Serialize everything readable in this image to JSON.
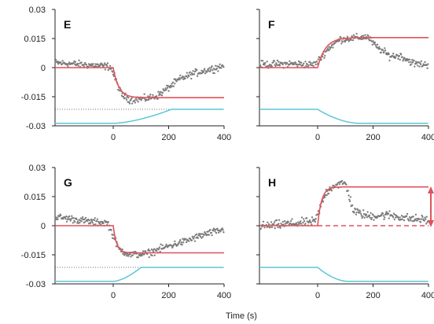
{
  "colors": {
    "fit": "#e0525a",
    "stimulus": "#5cc6d8",
    "points": "#7a7a7a",
    "axis": "#222222",
    "dotted": "#444444"
  },
  "figure": {
    "xlabel": "Time (s)"
  },
  "chart_data": [
    {
      "type": "scatter",
      "panel": "E",
      "xlim": [
        -210,
        400
      ],
      "ylim": [
        -0.03,
        0.03
      ],
      "x_ticks": [
        0,
        200,
        400
      ],
      "y_ticks": [
        0.03,
        0.015,
        0,
        -0.015,
        -0.03
      ],
      "y_tick_labels": [
        "0.03",
        "0.015",
        "0",
        "-0.015",
        "-0.03"
      ],
      "show_y_ticks": true,
      "fit": {
        "baseline": 0,
        "plateau": -0.0155,
        "onset": 0,
        "tau": 20
      },
      "stimulus": {
        "low": -0.0287,
        "high": -0.0215,
        "start": 0,
        "end": 210,
        "shape": "rise"
      },
      "dotted_level": -0.0215,
      "data_points": {
        "segments": [
          [
            -210,
            0.0025
          ],
          [
            -100,
            0.0015
          ],
          [
            -10,
            0.0005
          ],
          [
            30,
            -0.014
          ],
          [
            60,
            -0.0165
          ],
          [
            120,
            -0.016
          ],
          [
            160,
            -0.0145
          ],
          [
            240,
            -0.006
          ],
          [
            290,
            -0.003
          ],
          [
            360,
            -0.0005
          ],
          [
            400,
            0.001
          ]
        ],
        "noise": 0.0018,
        "step": 2.2
      }
    },
    {
      "type": "scatter",
      "panel": "F",
      "xlim": [
        -210,
        400
      ],
      "ylim": [
        -0.03,
        0.03
      ],
      "x_ticks": [
        0,
        200,
        400
      ],
      "y_ticks": [
        0.03,
        0.015,
        0,
        -0.015,
        -0.03
      ],
      "show_y_ticks": false,
      "fit": {
        "baseline": 0,
        "plateau": 0.0155,
        "onset": 0,
        "tau": 28
      },
      "stimulus": {
        "low": -0.0287,
        "high": -0.0215,
        "start": 0,
        "end": 150,
        "shape": "fall"
      },
      "dotted_level": null,
      "data_points": {
        "segments": [
          [
            -210,
            0.0015
          ],
          [
            -100,
            0.002
          ],
          [
            -10,
            0.0015
          ],
          [
            40,
            0.01
          ],
          [
            80,
            0.0145
          ],
          [
            150,
            0.0155
          ],
          [
            180,
            0.016
          ],
          [
            210,
            0.011
          ],
          [
            260,
            0.006
          ],
          [
            300,
            0.006
          ],
          [
            350,
            0.002
          ],
          [
            400,
            0.0015
          ]
        ],
        "noise": 0.0018,
        "step": 2.2
      }
    },
    {
      "type": "scatter",
      "panel": "G",
      "xlim": [
        -210,
        400
      ],
      "ylim": [
        -0.03,
        0.03
      ],
      "x_ticks": [
        0,
        200,
        400
      ],
      "y_ticks": [
        0.03,
        0.015,
        0,
        -0.015,
        -0.03
      ],
      "y_tick_labels": [
        "0.03",
        "0.015",
        "0",
        "-0.015",
        "-0.03"
      ],
      "show_y_ticks": true,
      "fit": {
        "baseline": 0,
        "plateau": -0.014,
        "onset": 0,
        "tau": 12
      },
      "stimulus": {
        "low": -0.0287,
        "high": -0.0215,
        "start": 0,
        "end": 100,
        "shape": "rise"
      },
      "dotted_level": -0.0215,
      "data_points": {
        "segments": [
          [
            -210,
            0.0045
          ],
          [
            -150,
            0.0035
          ],
          [
            -80,
            0.002
          ],
          [
            -20,
            0.0015
          ],
          [
            20,
            -0.012
          ],
          [
            60,
            -0.015
          ],
          [
            120,
            -0.0145
          ],
          [
            200,
            -0.0105
          ],
          [
            260,
            -0.008
          ],
          [
            330,
            -0.0045
          ],
          [
            400,
            -0.002
          ]
        ],
        "noise": 0.0018,
        "step": 2.2
      }
    },
    {
      "type": "scatter",
      "panel": "H",
      "xlim": [
        -210,
        400
      ],
      "ylim": [
        -0.03,
        0.03
      ],
      "x_ticks": [
        0,
        200,
        400
      ],
      "y_ticks": [
        0.03,
        0.015,
        0,
        -0.015,
        -0.03
      ],
      "show_y_ticks": false,
      "fit": {
        "baseline": 0,
        "plateau": 0.02,
        "onset": 0,
        "tau": 14
      },
      "stimulus": {
        "low": -0.0287,
        "high": -0.0215,
        "start": 0,
        "end": 110,
        "shape": "fall"
      },
      "dotted_level": null,
      "dashed_baseline": 0,
      "data_points": {
        "segments": [
          [
            -210,
            -0.0005
          ],
          [
            -100,
            0.001
          ],
          [
            -10,
            0.002
          ],
          [
            30,
            0.017
          ],
          [
            60,
            0.021
          ],
          [
            100,
            0.022
          ],
          [
            130,
            0.0075
          ],
          [
            180,
            0.005
          ],
          [
            260,
            0.0055
          ],
          [
            340,
            0.0035
          ],
          [
            400,
            0.003
          ]
        ],
        "noise": 0.0022,
        "step": 2.2
      }
    }
  ]
}
